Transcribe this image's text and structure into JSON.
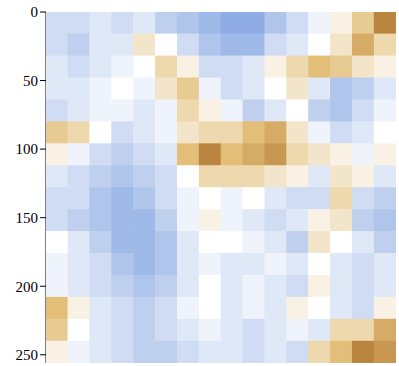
{
  "chart_data": {
    "type": "heatmap",
    "xlim": [
      0,
      256
    ],
    "ylim": [
      0,
      256
    ],
    "yticks": [
      0,
      50,
      100,
      150,
      200,
      250
    ],
    "tick_labels": "y",
    "color_range": [
      -1,
      1
    ],
    "cells": [
      [
        -0.3,
        -0.3,
        -0.2,
        -0.3,
        -0.2,
        -0.4,
        -0.5,
        -0.6,
        -0.7,
        -0.7,
        -0.5,
        -0.3,
        -0.1,
        0.1,
        0.4,
        0.8
      ],
      [
        -0.3,
        -0.4,
        -0.2,
        -0.2,
        0.2,
        0.0,
        -0.3,
        -0.5,
        -0.6,
        -0.6,
        -0.3,
        -0.2,
        0.0,
        0.2,
        0.6,
        0.3
      ],
      [
        -0.2,
        -0.3,
        -0.2,
        -0.1,
        0.0,
        0.3,
        0.1,
        -0.3,
        -0.3,
        -0.2,
        0.1,
        0.3,
        0.5,
        0.4,
        0.2,
        0.1
      ],
      [
        -0.2,
        -0.2,
        -0.1,
        0.0,
        -0.1,
        0.2,
        0.4,
        -0.1,
        -0.3,
        -0.2,
        0.0,
        0.2,
        -0.2,
        -0.5,
        -0.4,
        -0.2
      ],
      [
        -0.3,
        -0.2,
        -0.1,
        -0.1,
        -0.2,
        -0.1,
        0.3,
        0.1,
        -0.1,
        -0.4,
        -0.2,
        0.0,
        -0.4,
        -0.5,
        -0.3,
        -0.1
      ],
      [
        0.4,
        0.3,
        0.0,
        -0.3,
        -0.2,
        -0.1,
        0.2,
        0.3,
        0.3,
        0.5,
        0.6,
        0.2,
        -0.1,
        -0.3,
        -0.2,
        0.0
      ],
      [
        0.1,
        -0.1,
        -0.3,
        -0.4,
        -0.3,
        -0.2,
        0.5,
        0.8,
        0.5,
        0.6,
        0.7,
        0.3,
        0.2,
        0.1,
        -0.1,
        0.1
      ],
      [
        -0.2,
        -0.3,
        -0.4,
        -0.5,
        -0.4,
        -0.3,
        0.0,
        0.3,
        0.3,
        0.3,
        0.2,
        0.1,
        -0.2,
        0.2,
        0.1,
        -0.2
      ],
      [
        -0.3,
        -0.3,
        -0.5,
        -0.6,
        -0.5,
        -0.3,
        -0.1,
        0.0,
        -0.1,
        0.0,
        -0.2,
        -0.3,
        -0.3,
        0.3,
        -0.3,
        -0.4
      ],
      [
        -0.3,
        -0.4,
        -0.5,
        -0.6,
        -0.6,
        -0.4,
        -0.1,
        0.1,
        -0.1,
        -0.2,
        -0.3,
        -0.2,
        0.1,
        0.2,
        -0.4,
        -0.5
      ],
      [
        0.0,
        -0.2,
        -0.4,
        -0.6,
        -0.6,
        -0.5,
        -0.2,
        0.0,
        0.0,
        -0.1,
        -0.2,
        -0.4,
        0.2,
        0.0,
        -0.2,
        -0.4
      ],
      [
        -0.1,
        -0.2,
        -0.3,
        -0.5,
        -0.6,
        -0.5,
        -0.2,
        -0.1,
        -0.2,
        -0.2,
        -0.1,
        -0.2,
        0.0,
        -0.2,
        -0.3,
        -0.2
      ],
      [
        -0.1,
        -0.2,
        -0.3,
        -0.4,
        -0.5,
        -0.4,
        -0.2,
        0.0,
        -0.2,
        -0.1,
        -0.2,
        -0.3,
        0.1,
        -0.2,
        -0.3,
        -0.2
      ],
      [
        0.5,
        0.1,
        -0.2,
        -0.3,
        -0.4,
        -0.3,
        -0.1,
        0.0,
        -0.2,
        -0.1,
        -0.2,
        0.1,
        0.0,
        -0.2,
        -0.3,
        0.1
      ],
      [
        0.4,
        0.0,
        -0.2,
        -0.3,
        -0.4,
        -0.3,
        -0.2,
        -0.1,
        -0.2,
        -0.3,
        -0.2,
        -0.1,
        -0.2,
        0.3,
        0.3,
        0.6
      ],
      [
        0.1,
        -0.1,
        -0.2,
        -0.3,
        -0.4,
        -0.4,
        -0.3,
        -0.2,
        -0.2,
        -0.3,
        -0.2,
        -0.3,
        0.3,
        0.5,
        0.8,
        0.7
      ]
    ]
  }
}
